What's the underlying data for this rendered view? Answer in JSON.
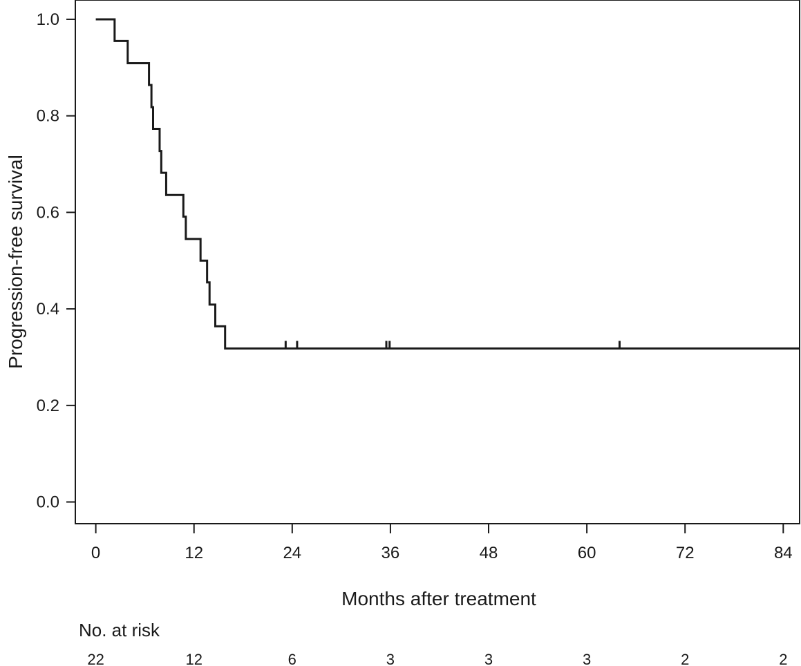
{
  "chart_data": {
    "type": "line",
    "subtype": "kaplan-meier",
    "title": "",
    "xlabel": "Months after treatment",
    "ylabel": "Progression-free survival",
    "xlim": [
      -2.5,
      86
    ],
    "ylim": [
      -0.045,
      1.04
    ],
    "x_ticks": [
      0,
      12,
      24,
      36,
      48,
      60,
      72,
      84
    ],
    "y_ticks": [
      0.0,
      0.2,
      0.4,
      0.6,
      0.8,
      1.0
    ],
    "y_tick_labels": [
      "0.0",
      "0.2",
      "0.4",
      "0.6",
      "0.8",
      "1.0"
    ],
    "grid": false,
    "legend": "none",
    "line_color": "#1a1a1a",
    "series": [
      {
        "steps": [
          [
            0,
            1.0
          ],
          [
            2.3,
            0.955
          ],
          [
            3.9,
            0.909
          ],
          [
            6.5,
            0.864
          ],
          [
            6.8,
            0.818
          ],
          [
            7.0,
            0.773
          ],
          [
            7.8,
            0.727
          ],
          [
            8.0,
            0.682
          ],
          [
            8.6,
            0.636
          ],
          [
            10.7,
            0.591
          ],
          [
            11.0,
            0.545
          ],
          [
            12.8,
            0.5
          ],
          [
            13.6,
            0.455
          ],
          [
            13.9,
            0.409
          ],
          [
            14.6,
            0.364
          ],
          [
            15.8,
            0.318
          ],
          [
            86,
            0.318
          ]
        ],
        "censor_times": [
          23.2,
          24.6,
          35.5,
          35.9,
          64.0
        ]
      }
    ],
    "risk_table": {
      "title": "No. at risk",
      "times": [
        0,
        12,
        24,
        36,
        48,
        60,
        72,
        84
      ],
      "counts": [
        "22",
        "12",
        "6",
        "3",
        "3",
        "3",
        "2",
        "2"
      ]
    }
  }
}
